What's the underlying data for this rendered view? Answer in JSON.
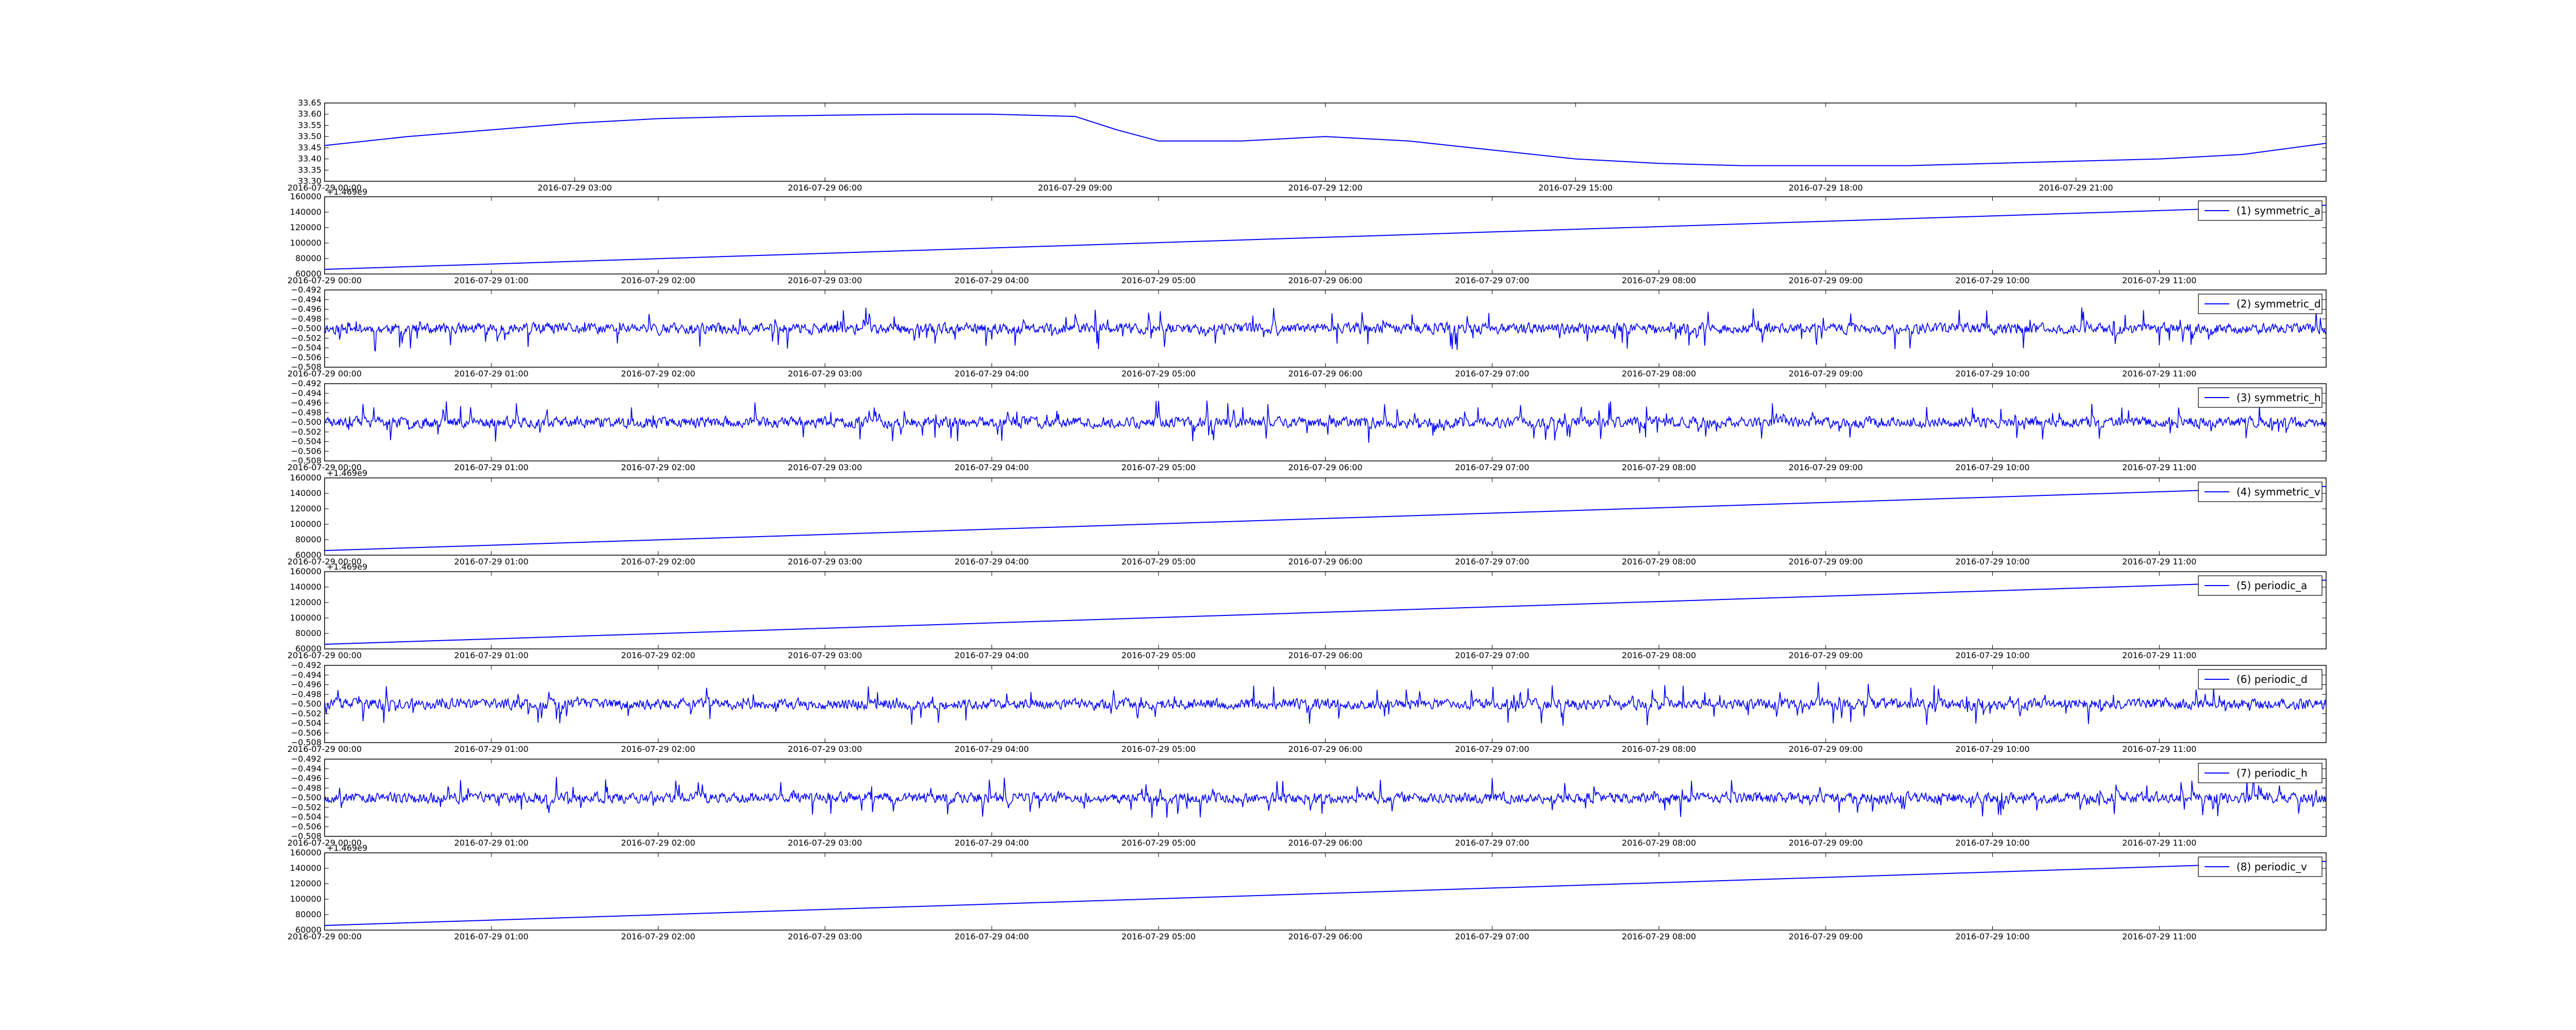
{
  "chart_data": [
    {
      "type": "line",
      "x_range": [
        "2016-07-29 00:00",
        "2016-07-30 00:00"
      ],
      "x_ticks": [
        "2016-07-29 00:00",
        "2016-07-29 03:00",
        "2016-07-29 06:00",
        "2016-07-29 09:00",
        "2016-07-29 12:00",
        "2016-07-29 15:00",
        "2016-07-29 18:00",
        "2016-07-29 21:00"
      ],
      "ylim": [
        33.3,
        33.65
      ],
      "y_ticks": [
        "33.30",
        "33.35",
        "33.40",
        "33.45",
        "33.50",
        "33.55",
        "33.60",
        "33.65"
      ],
      "series": [
        {
          "color": "#0000ff",
          "points": [
            [
              "2016-07-29 00:00",
              33.46
            ],
            [
              "2016-07-29 01:00",
              33.5
            ],
            [
              "2016-07-29 02:00",
              33.53
            ],
            [
              "2016-07-29 03:00",
              33.56
            ],
            [
              "2016-07-29 04:00",
              33.58
            ],
            [
              "2016-07-29 05:00",
              33.59
            ],
            [
              "2016-07-29 06:00",
              33.595
            ],
            [
              "2016-07-29 07:00",
              33.6
            ],
            [
              "2016-07-29 08:00",
              33.6
            ],
            [
              "2016-07-29 09:00",
              33.59
            ],
            [
              "2016-07-29 09:30",
              33.53
            ],
            [
              "2016-07-29 10:00",
              33.48
            ],
            [
              "2016-07-29 11:00",
              33.48
            ],
            [
              "2016-07-29 12:00",
              33.5
            ],
            [
              "2016-07-29 13:00",
              33.48
            ],
            [
              "2016-07-29 14:00",
              33.44
            ],
            [
              "2016-07-29 15:00",
              33.4
            ],
            [
              "2016-07-29 16:00",
              33.38
            ],
            [
              "2016-07-29 17:00",
              33.37
            ],
            [
              "2016-07-29 18:00",
              33.37
            ],
            [
              "2016-07-29 19:00",
              33.37
            ],
            [
              "2016-07-29 20:00",
              33.38
            ],
            [
              "2016-07-29 21:00",
              33.39
            ],
            [
              "2016-07-29 22:00",
              33.4
            ],
            [
              "2016-07-29 23:00",
              33.42
            ],
            [
              "2016-07-30 00:00",
              33.47
            ]
          ]
        }
      ]
    },
    {
      "type": "line",
      "x_range": [
        "2016-07-29 00:00",
        "2016-07-29 12:00"
      ],
      "x_ticks": [
        "2016-07-29 00:00",
        "2016-07-29 01:00",
        "2016-07-29 02:00",
        "2016-07-29 03:00",
        "2016-07-29 04:00",
        "2016-07-29 05:00",
        "2016-07-29 06:00",
        "2016-07-29 07:00",
        "2016-07-29 08:00",
        "2016-07-29 09:00",
        "2016-07-29 10:00",
        "2016-07-29 11:00"
      ],
      "ylim": [
        60000,
        160000
      ],
      "y_ticks": [
        "60000",
        "80000",
        "100000",
        "120000",
        "140000",
        "160000"
      ],
      "offset_text": "+1.469e9",
      "legend_position": "top-right",
      "series": [
        {
          "name": "(1) symmetric_a",
          "color": "#0000ff",
          "points": [
            [
              "2016-07-29 00:00",
              66000
            ],
            [
              "2016-07-29 12:00",
              149000
            ]
          ]
        }
      ]
    },
    {
      "type": "line",
      "x_range": [
        "2016-07-29 00:00",
        "2016-07-29 12:00"
      ],
      "x_ticks": [
        "2016-07-29 00:00",
        "2016-07-29 01:00",
        "2016-07-29 02:00",
        "2016-07-29 03:00",
        "2016-07-29 04:00",
        "2016-07-29 05:00",
        "2016-07-29 06:00",
        "2016-07-29 07:00",
        "2016-07-29 08:00",
        "2016-07-29 09:00",
        "2016-07-29 10:00",
        "2016-07-29 11:00"
      ],
      "ylim": [
        -0.508,
        -0.492
      ],
      "y_ticks": [
        "−0.508",
        "−0.506",
        "−0.504",
        "−0.502",
        "−0.500",
        "−0.498",
        "−0.496",
        "−0.494",
        "−0.492"
      ],
      "legend_position": "top-right",
      "series": [
        {
          "name": "(2) symmetric_d",
          "color": "#0000ff",
          "noise": {
            "baseline": -0.5,
            "spread": 0.008,
            "seed": 11
          }
        }
      ]
    },
    {
      "type": "line",
      "x_range": [
        "2016-07-29 00:00",
        "2016-07-29 12:00"
      ],
      "x_ticks": [
        "2016-07-29 00:00",
        "2016-07-29 01:00",
        "2016-07-29 02:00",
        "2016-07-29 03:00",
        "2016-07-29 04:00",
        "2016-07-29 05:00",
        "2016-07-29 06:00",
        "2016-07-29 07:00",
        "2016-07-29 08:00",
        "2016-07-29 09:00",
        "2016-07-29 10:00",
        "2016-07-29 11:00"
      ],
      "ylim": [
        -0.508,
        -0.492
      ],
      "y_ticks": [
        "−0.508",
        "−0.506",
        "−0.504",
        "−0.502",
        "−0.500",
        "−0.498",
        "−0.496",
        "−0.494",
        "−0.492"
      ],
      "legend_position": "top-right",
      "series": [
        {
          "name": "(3) symmetric_h",
          "color": "#0000ff",
          "noise": {
            "baseline": -0.5,
            "spread": 0.008,
            "seed": 23
          }
        }
      ]
    },
    {
      "type": "line",
      "x_range": [
        "2016-07-29 00:00",
        "2016-07-29 12:00"
      ],
      "x_ticks": [
        "2016-07-29 00:00",
        "2016-07-29 01:00",
        "2016-07-29 02:00",
        "2016-07-29 03:00",
        "2016-07-29 04:00",
        "2016-07-29 05:00",
        "2016-07-29 06:00",
        "2016-07-29 07:00",
        "2016-07-29 08:00",
        "2016-07-29 09:00",
        "2016-07-29 10:00",
        "2016-07-29 11:00"
      ],
      "ylim": [
        60000,
        160000
      ],
      "y_ticks": [
        "60000",
        "80000",
        "100000",
        "120000",
        "140000",
        "160000"
      ],
      "offset_text": "+1.469e9",
      "legend_position": "top-right",
      "series": [
        {
          "name": "(4) symmetric_v",
          "color": "#0000ff",
          "points": [
            [
              "2016-07-29 00:00",
              66000
            ],
            [
              "2016-07-29 12:00",
              149000
            ]
          ]
        }
      ]
    },
    {
      "type": "line",
      "x_range": [
        "2016-07-29 00:00",
        "2016-07-29 12:00"
      ],
      "x_ticks": [
        "2016-07-29 00:00",
        "2016-07-29 01:00",
        "2016-07-29 02:00",
        "2016-07-29 03:00",
        "2016-07-29 04:00",
        "2016-07-29 05:00",
        "2016-07-29 06:00",
        "2016-07-29 07:00",
        "2016-07-29 08:00",
        "2016-07-29 09:00",
        "2016-07-29 10:00",
        "2016-07-29 11:00"
      ],
      "ylim": [
        60000,
        160000
      ],
      "y_ticks": [
        "60000",
        "80000",
        "100000",
        "120000",
        "140000",
        "160000"
      ],
      "offset_text": "+1.469e9",
      "legend_position": "top-right",
      "series": [
        {
          "name": "(5) periodic_a",
          "color": "#0000ff",
          "points": [
            [
              "2016-07-29 00:00",
              66000
            ],
            [
              "2016-07-29 12:00",
              149000
            ]
          ]
        }
      ]
    },
    {
      "type": "line",
      "x_range": [
        "2016-07-29 00:00",
        "2016-07-29 12:00"
      ],
      "x_ticks": [
        "2016-07-29 00:00",
        "2016-07-29 01:00",
        "2016-07-29 02:00",
        "2016-07-29 03:00",
        "2016-07-29 04:00",
        "2016-07-29 05:00",
        "2016-07-29 06:00",
        "2016-07-29 07:00",
        "2016-07-29 08:00",
        "2016-07-29 09:00",
        "2016-07-29 10:00",
        "2016-07-29 11:00"
      ],
      "ylim": [
        -0.508,
        -0.492
      ],
      "y_ticks": [
        "−0.508",
        "−0.506",
        "−0.504",
        "−0.502",
        "−0.500",
        "−0.498",
        "−0.496",
        "−0.494",
        "−0.492"
      ],
      "legend_position": "top-right",
      "series": [
        {
          "name": "(6) periodic_d",
          "color": "#0000ff",
          "noise": {
            "baseline": -0.5,
            "spread": 0.008,
            "seed": 37
          }
        }
      ]
    },
    {
      "type": "line",
      "x_range": [
        "2016-07-29 00:00",
        "2016-07-29 12:00"
      ],
      "x_ticks": [
        "2016-07-29 00:00",
        "2016-07-29 01:00",
        "2016-07-29 02:00",
        "2016-07-29 03:00",
        "2016-07-29 04:00",
        "2016-07-29 05:00",
        "2016-07-29 06:00",
        "2016-07-29 07:00",
        "2016-07-29 08:00",
        "2016-07-29 09:00",
        "2016-07-29 10:00",
        "2016-07-29 11:00"
      ],
      "ylim": [
        -0.508,
        -0.492
      ],
      "y_ticks": [
        "−0.508",
        "−0.506",
        "−0.504",
        "−0.502",
        "−0.500",
        "−0.498",
        "−0.496",
        "−0.494",
        "−0.492"
      ],
      "legend_position": "top-right",
      "series": [
        {
          "name": "(7) periodic_h",
          "color": "#0000ff",
          "noise": {
            "baseline": -0.5,
            "spread": 0.008,
            "seed": 53
          }
        }
      ]
    },
    {
      "type": "line",
      "x_range": [
        "2016-07-29 00:00",
        "2016-07-29 12:00"
      ],
      "x_ticks": [
        "2016-07-29 00:00",
        "2016-07-29 01:00",
        "2016-07-29 02:00",
        "2016-07-29 03:00",
        "2016-07-29 04:00",
        "2016-07-29 05:00",
        "2016-07-29 06:00",
        "2016-07-29 07:00",
        "2016-07-29 08:00",
        "2016-07-29 09:00",
        "2016-07-29 10:00",
        "2016-07-29 11:00"
      ],
      "ylim": [
        60000,
        160000
      ],
      "y_ticks": [
        "60000",
        "80000",
        "100000",
        "120000",
        "140000",
        "160000"
      ],
      "offset_text": "+1.469e9",
      "legend_position": "top-right",
      "series": [
        {
          "name": "(8) periodic_v",
          "color": "#0000ff",
          "points": [
            [
              "2016-07-29 00:00",
              66000
            ],
            [
              "2016-07-29 12:00",
              149000
            ]
          ]
        }
      ]
    }
  ]
}
